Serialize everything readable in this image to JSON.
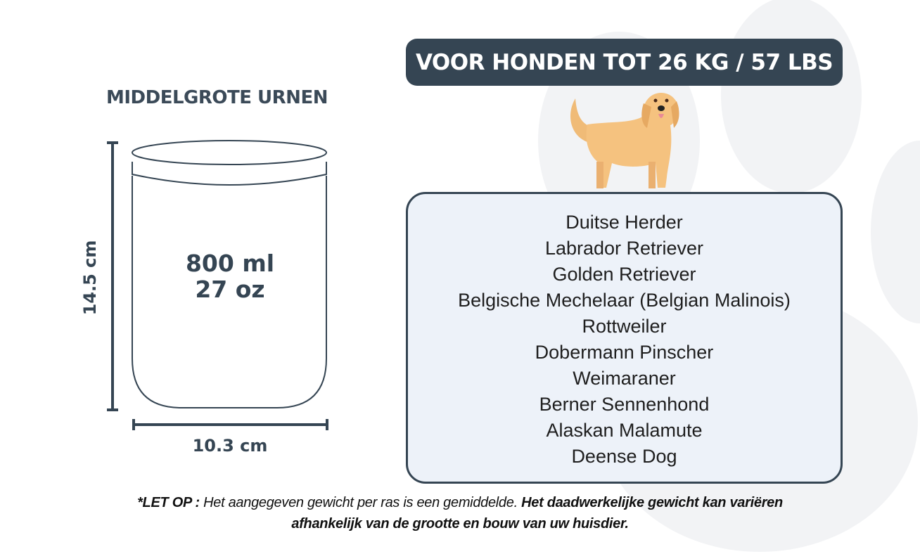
{
  "banner": {
    "title": "VOOR HONDEN TOT 26 KG / 57 LBS"
  },
  "urn": {
    "subtitle": "MIDDELGROTE URNEN",
    "capacity_ml": "800 ml",
    "capacity_oz": "27 oz",
    "height": "14.5 cm",
    "width": "10.3 cm"
  },
  "breeds": [
    "Duitse Herder",
    "Labrador Retriever",
    "Golden Retriever",
    "Belgische Mechelaar (Belgian Malinois)",
    "Rottweiler",
    "Dobermann Pinscher",
    "Weimaraner",
    "Berner Sennenhond",
    "Alaskan Malamute",
    "Deense Dog"
  ],
  "note": {
    "label": "*LET OP :",
    "text_italic": " Het aangegeven gewicht per ras is een gemiddelde. ",
    "text_bold": "Het daadwerkelijke gewicht kan variëren afhankelijk van de grootte en bouw van uw huisdier."
  },
  "colors": {
    "primary": "#354553",
    "box_bg": "#edf2f9",
    "dog": "#f5c27f",
    "paw_bg": "#f2f3f5"
  },
  "icons": {
    "background": "paw-print-watermark",
    "illustration": "golden-retriever-dog"
  }
}
